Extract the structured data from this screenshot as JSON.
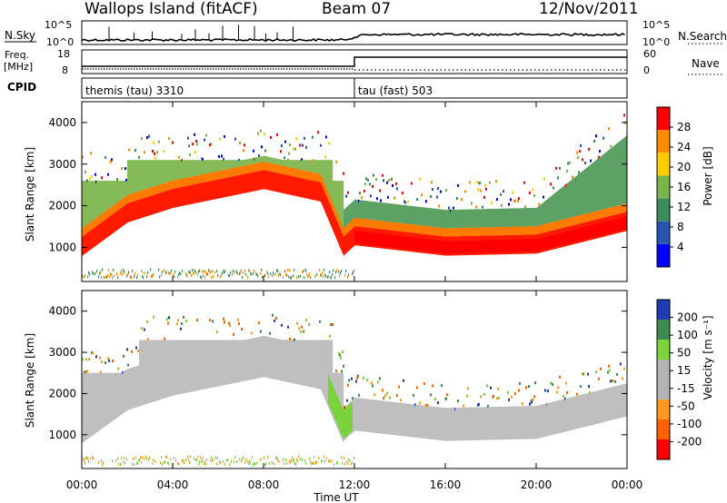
{
  "header": {
    "station": "Wallops Island (fitACF)",
    "beam": "Beam 07",
    "date": "12/Nov/2011"
  },
  "strips": {
    "nsky_label": "N.Sky",
    "nsearch_label": "N.Search",
    "freq_label": "Freq.",
    "freq_unit": "[MHz]",
    "nave_label": "Nave",
    "cpid_label": "CPID",
    "nsky_ticks": [
      "10^5",
      "10^0"
    ],
    "nsearch_ticks": [
      "10^5",
      "10^0"
    ],
    "freq_ticks": [
      "18",
      "8"
    ],
    "nave_ticks": [
      "60",
      "0"
    ],
    "cpid_segments": [
      "themis (tau) 3310",
      "tau (fast) 503"
    ],
    "colors": {
      "noise": "#000000"
    }
  },
  "panels": {
    "slant_label": "Slant Range [km]",
    "power_label": "Power [dB]",
    "velocity_label": "Velocity [m s⁻¹]",
    "range_ticks": [
      "1000",
      "2000",
      "3000",
      "4000"
    ],
    "power_ticks": [
      "4",
      "8",
      "12",
      "16",
      "20",
      "24",
      "28"
    ],
    "velocity_ticks": [
      "-200",
      "-100",
      "-50",
      "-15",
      "15",
      "50",
      "100",
      "200"
    ]
  },
  "xaxis": {
    "label": "Time UT",
    "ticks": [
      "00:00",
      "04:00",
      "08:00",
      "12:00",
      "16:00",
      "20:00",
      "00:00"
    ]
  },
  "chart_data": [
    {
      "type": "heatmap",
      "title": "Power [dB]",
      "xlabel": "Time UT",
      "ylabel": "Slant Range [km]",
      "xlim": [
        0,
        24
      ],
      "ylim": [
        180,
        4500
      ],
      "colorbar_range": [
        0,
        30
      ],
      "colorbar_colors": [
        "#0000ff",
        "#2456b0",
        "#3b8c5c",
        "#7ab44a",
        "#ffcc00",
        "#ff8c00",
        "#ff0000"
      ],
      "echo_band_slant_km": [
        {
          "x": 0.0,
          "y": 1000
        },
        {
          "x": 2.0,
          "y": 1800
        },
        {
          "x": 4.0,
          "y": 2150
        },
        {
          "x": 8.0,
          "y": 2600
        },
        {
          "x": 10.5,
          "y": 2300
        },
        {
          "x": 11.5,
          "y": 1000
        },
        {
          "x": 12.0,
          "y": 1250
        },
        {
          "x": 16.0,
          "y": 1000
        },
        {
          "x": 20.0,
          "y": 1050
        },
        {
          "x": 24.0,
          "y": 1600
        }
      ]
    },
    {
      "type": "heatmap",
      "title": "Velocity [m s⁻¹]",
      "xlabel": "Time UT",
      "ylabel": "Slant Range [km]",
      "xlim": [
        0,
        24
      ],
      "ylim": [
        180,
        4500
      ],
      "colorbar_range": [
        -250,
        250
      ],
      "colorbar_colors": [
        "#ff0000",
        "#ff6000",
        "#ff9a20",
        "#b4b4b4",
        "#b4b4b4",
        "#7ad23c",
        "#3c8c50",
        "#1e3cb4"
      ],
      "dominant_velocity_m_s": 0
    }
  ]
}
